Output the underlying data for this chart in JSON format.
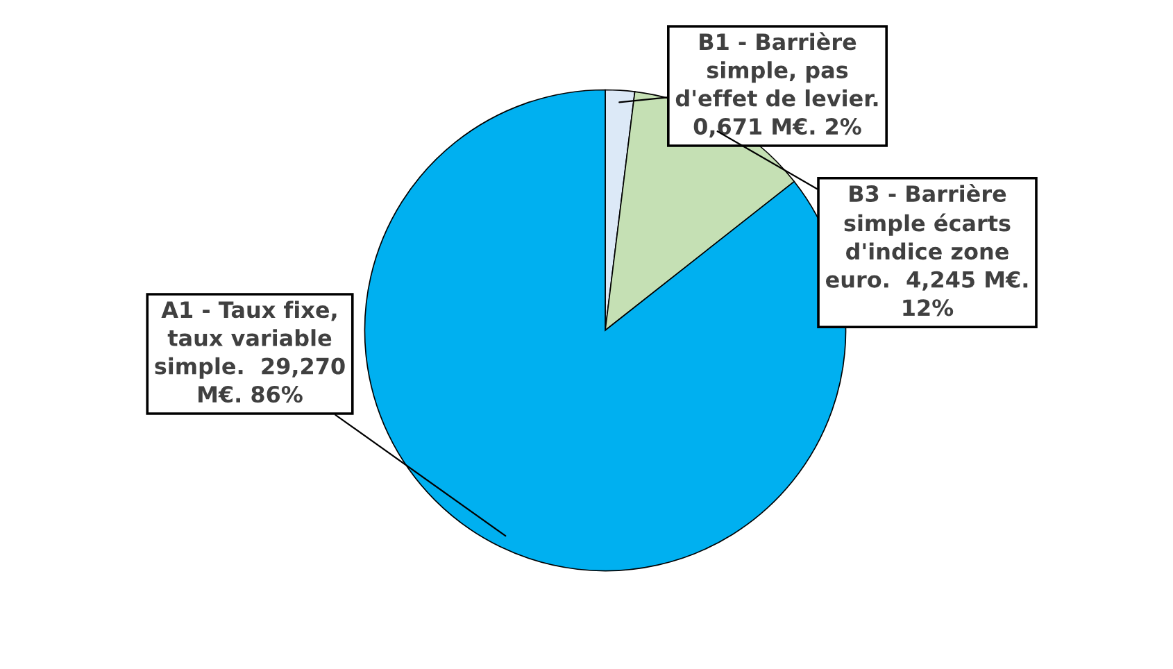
{
  "chart_data": {
    "type": "pie",
    "categories": [
      "B1 - Barrière\nsimple, pas\nd'effet de levier.\n0,671 M€. 2%",
      "B3 - Barrière\nsimple écarts\nd'indice zone\neuro.  4,245 M€.\n12%",
      "A1 - Taux fixe,\ntaux variable\nsimple.  29,270\nM€. 86%"
    ],
    "values": [
      0.671,
      4.245,
      29.27
    ],
    "colors": [
      "#dce9f7",
      "#c5e0b4",
      "#00b0f0"
    ],
    "legend": false
  }
}
